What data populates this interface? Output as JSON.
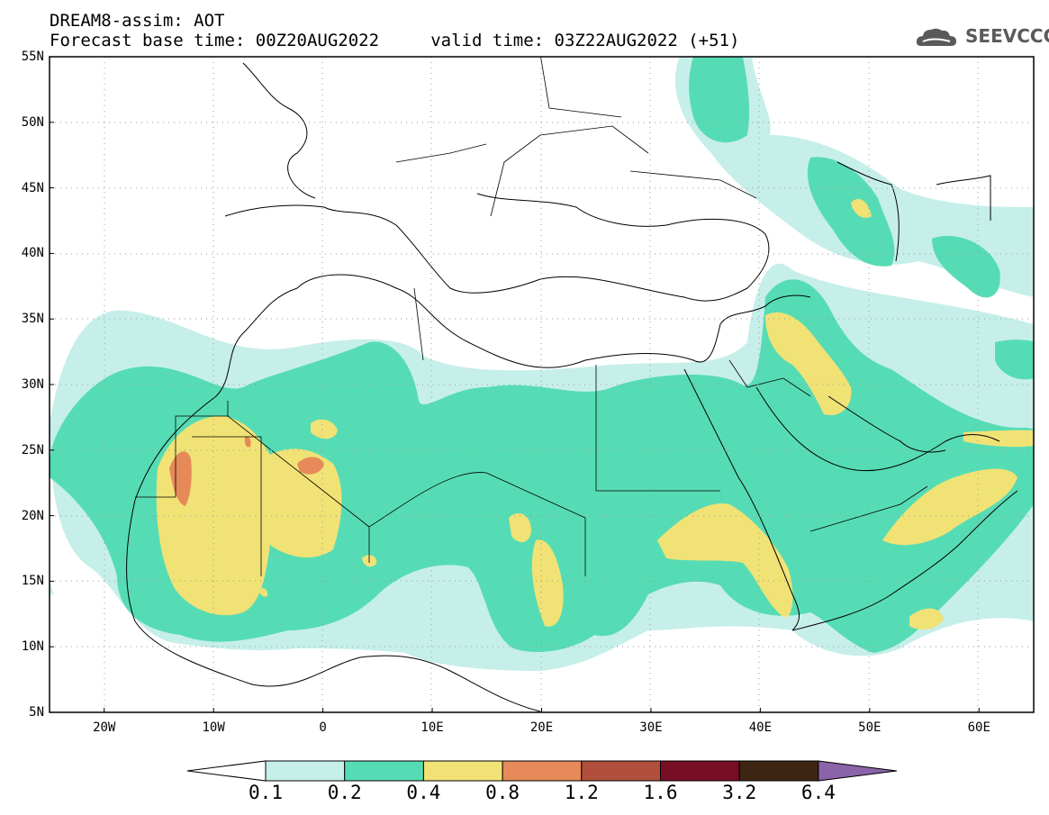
{
  "header": {
    "title_line1": "DREAM8-assim: AOT",
    "title_line2": "Forecast base time: 00Z20AUG2022     valid time: 03Z22AUG2022 (+51)",
    "logo_text": "SEEVCCC",
    "logo_icon": "cloud-icon"
  },
  "map": {
    "extent": {
      "lon": [
        -25,
        65
      ],
      "lat": [
        5,
        55
      ]
    },
    "lat_labels": [
      "55N",
      "50N",
      "45N",
      "40N",
      "35N",
      "30N",
      "25N",
      "20N",
      "15N",
      "10N",
      "5N"
    ],
    "lat_values": [
      55,
      50,
      45,
      40,
      35,
      30,
      25,
      20,
      15,
      10,
      5
    ],
    "lon_labels": [
      "20W",
      "10W",
      "0",
      "10E",
      "20E",
      "30E",
      "40E",
      "50E",
      "60E"
    ],
    "lon_values": [
      -20,
      -10,
      0,
      10,
      20,
      30,
      40,
      50,
      60
    ],
    "grid": true
  },
  "colorbar": {
    "labels": [
      "0.1",
      "0.2",
      "0.4",
      "0.8",
      "1.2",
      "1.6",
      "3.2",
      "6.4"
    ],
    "colors": [
      "#ffffff",
      "#c6efea",
      "#56dcb4",
      "#f1e276",
      "#e68a5a",
      "#b04f3c",
      "#780e26",
      "#3e2512",
      "#8a63a8"
    ]
  }
}
